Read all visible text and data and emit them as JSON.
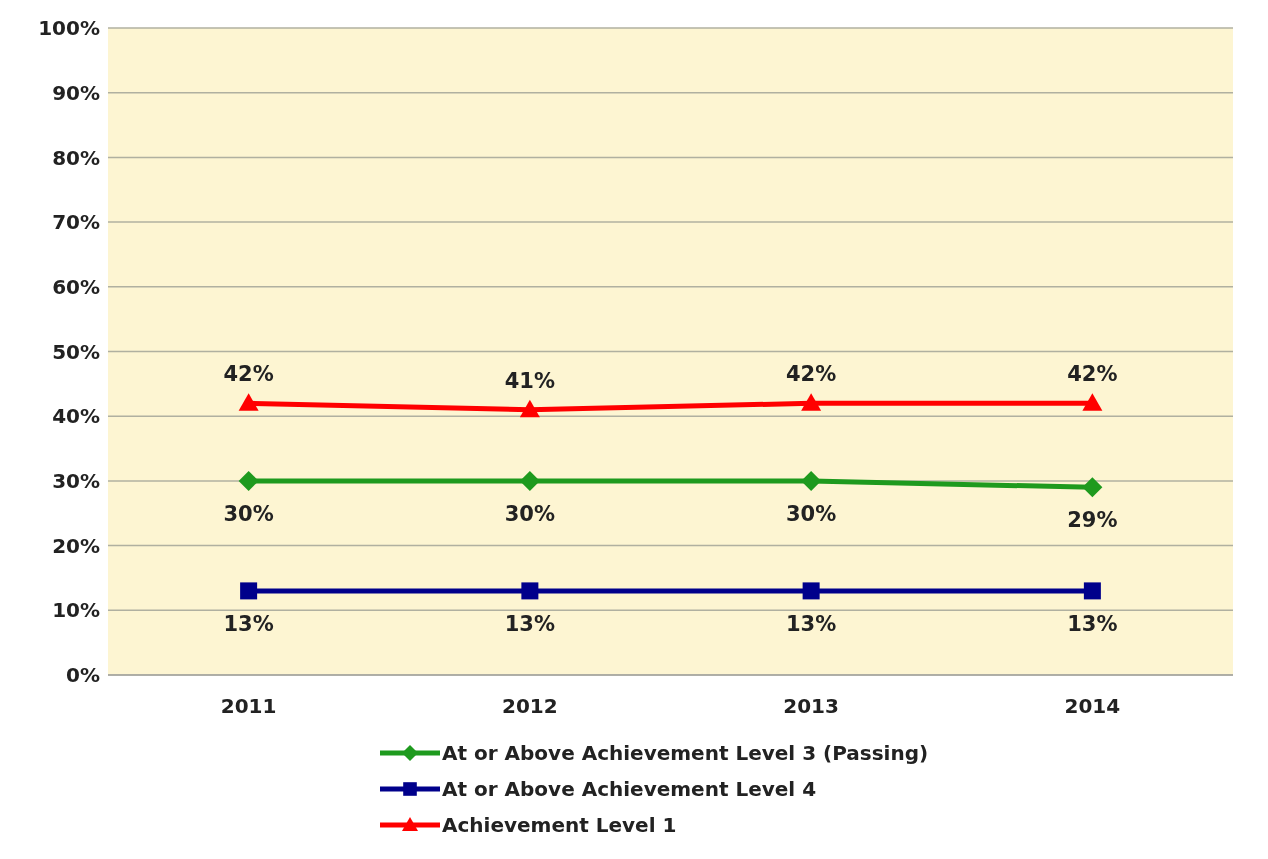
{
  "chart_data": {
    "type": "line",
    "categories": [
      "2011",
      "2012",
      "2013",
      "2014"
    ],
    "series": [
      {
        "name": "At or Above Achievement Level 3 (Passing)",
        "color": "#1e9a1e",
        "marker": "diamond",
        "values": [
          30,
          30,
          30,
          29
        ],
        "value_labels": [
          "30%",
          "30%",
          "30%",
          "29%"
        ]
      },
      {
        "name": "At or Above Achievement Level 4",
        "color": "#00008b",
        "marker": "square",
        "values": [
          13,
          13,
          13,
          13
        ],
        "value_labels": [
          "13%",
          "13%",
          "13%",
          "13%"
        ]
      },
      {
        "name": "Achievement Level 1",
        "color": "#ff0000",
        "marker": "triangle",
        "values": [
          42,
          41,
          42,
          42
        ],
        "value_labels": [
          "42%",
          "41%",
          "42%",
          "42%"
        ]
      }
    ],
    "ylim": [
      0,
      100
    ],
    "yticks": [
      {
        "value": 0,
        "label": "0%"
      },
      {
        "value": 10,
        "label": "10%"
      },
      {
        "value": 20,
        "label": "20%"
      },
      {
        "value": 30,
        "label": "30%"
      },
      {
        "value": 40,
        "label": "40%"
      },
      {
        "value": 50,
        "label": "50%"
      },
      {
        "value": 60,
        "label": "60%"
      },
      {
        "value": 70,
        "label": "70%"
      },
      {
        "value": 80,
        "label": "80%"
      },
      {
        "value": 90,
        "label": "90%"
      },
      {
        "value": 100,
        "label": "100%"
      }
    ],
    "grid": "y",
    "legend": "bottom",
    "line_style": "solid"
  }
}
